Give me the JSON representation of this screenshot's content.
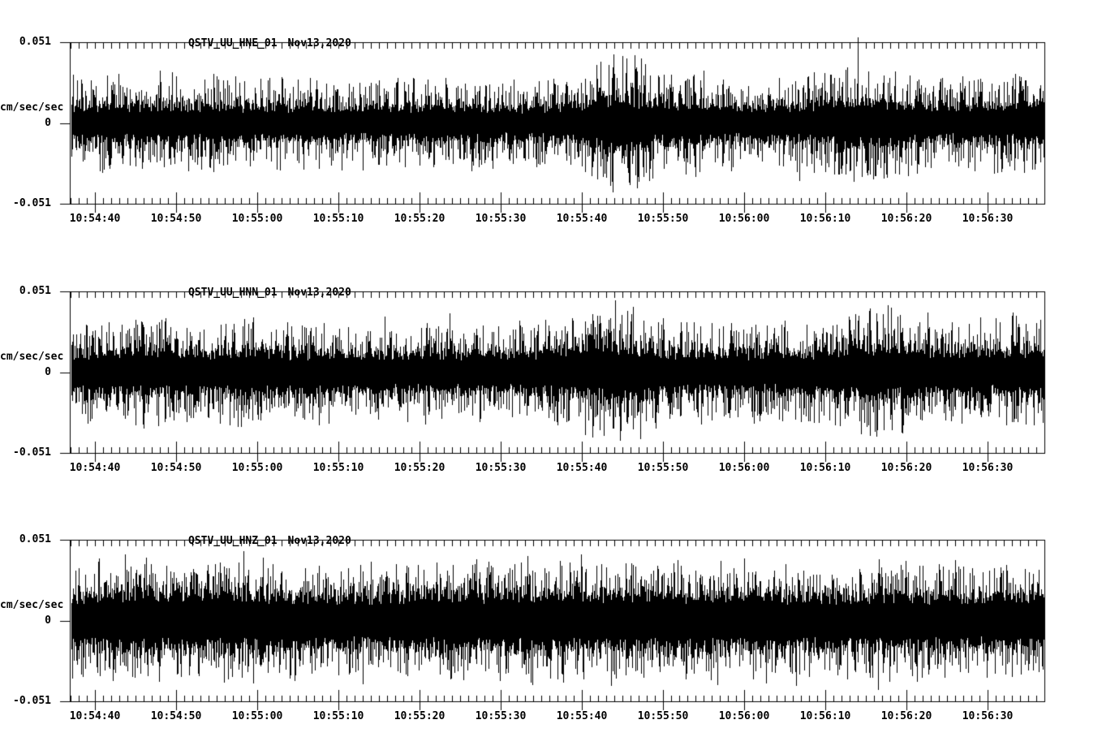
{
  "page": {
    "background": "#ffffff",
    "foreground": "#000000"
  },
  "chart_data": [
    {
      "type": "line",
      "subtype": "seismogram-waveform",
      "title": "QSTV_UU_HNE_01",
      "date": "Nov13,2020",
      "ylabel": "cm/sec/sec",
      "yticks": [
        "0.051",
        "0",
        "-0.051"
      ],
      "ylim": [
        -0.051,
        0.051
      ],
      "x_start_time": "10:54:37",
      "x_end_time": "10:56:37",
      "x_major_interval_s": 10,
      "x_minor_interval_s": 1,
      "x_ticklabels": [
        "10:54:40",
        "10:54:50",
        "10:55:00",
        "10:55:10",
        "10:55:20",
        "10:55:30",
        "10:55:40",
        "10:55:50",
        "10:56:00",
        "10:56:10",
        "10:56:20",
        "10:56:30"
      ],
      "grid": false,
      "legend": false,
      "waveform": {
        "seed": 20201113,
        "core": 18,
        "amp": 38,
        "env": [
          [
            0,
            1.0
          ],
          [
            0.08,
            1.05
          ],
          [
            0.3,
            0.95
          ],
          [
            0.42,
            1.0
          ],
          [
            0.47,
            0.9
          ],
          [
            0.52,
            1.12
          ],
          [
            0.545,
            1.4
          ],
          [
            0.565,
            1.55
          ],
          [
            0.585,
            1.35
          ],
          [
            0.6,
            1.1
          ],
          [
            0.63,
            1.15
          ],
          [
            0.67,
            1.0
          ],
          [
            0.7,
            0.9
          ],
          [
            0.74,
            1.0
          ],
          [
            0.78,
            1.15
          ],
          [
            0.8,
            1.3
          ],
          [
            0.82,
            1.35
          ],
          [
            0.84,
            1.2
          ],
          [
            0.87,
            1.05
          ],
          [
            0.9,
            1.0
          ],
          [
            0.95,
            1.05
          ],
          [
            1,
            1.12
          ]
        ],
        "spikes": [
          [
            0.091,
            65
          ],
          [
            0.108,
            58
          ],
          [
            0.16,
            52
          ],
          [
            0.3,
            -58
          ],
          [
            0.528,
            -60
          ],
          [
            0.54,
            72
          ],
          [
            0.548,
            -62
          ],
          [
            0.558,
            85
          ],
          [
            0.571,
            80
          ],
          [
            0.583,
            -66
          ],
          [
            0.598,
            -68
          ],
          [
            0.64,
            60
          ],
          [
            0.642,
            -66
          ],
          [
            0.749,
            -71
          ],
          [
            0.796,
            66
          ],
          [
            0.809,
            106
          ],
          [
            0.82,
            -58
          ],
          [
            0.87,
            -62
          ],
          [
            0.935,
            55
          ],
          [
            0.975,
            58
          ]
        ]
      }
    },
    {
      "type": "line",
      "subtype": "seismogram-waveform",
      "title": "QSTV_UU_HNN_01",
      "date": "Nov13,2020",
      "ylabel": "cm/sec/sec",
      "yticks": [
        "0.051",
        "0",
        "-0.051"
      ],
      "ylim": [
        -0.051,
        0.051
      ],
      "x_start_time": "10:54:37",
      "x_end_time": "10:56:37",
      "x_major_interval_s": 10,
      "x_minor_interval_s": 1,
      "x_ticklabels": [
        "10:54:40",
        "10:54:50",
        "10:55:00",
        "10:55:10",
        "10:55:20",
        "10:55:30",
        "10:55:40",
        "10:55:50",
        "10:56:00",
        "10:56:10",
        "10:56:20",
        "10:56:30"
      ],
      "grid": false,
      "legend": false,
      "waveform": {
        "seed": 77231,
        "core": 20,
        "amp": 38,
        "env": [
          [
            0,
            1.0
          ],
          [
            0.05,
            1.1
          ],
          [
            0.08,
            1.2
          ],
          [
            0.1,
            1.15
          ],
          [
            0.14,
            1.0
          ],
          [
            0.17,
            1.15
          ],
          [
            0.19,
            1.2
          ],
          [
            0.22,
            1.05
          ],
          [
            0.3,
            1.0
          ],
          [
            0.4,
            1.05
          ],
          [
            0.47,
            1.0
          ],
          [
            0.52,
            1.2
          ],
          [
            0.545,
            1.4
          ],
          [
            0.56,
            1.45
          ],
          [
            0.58,
            1.3
          ],
          [
            0.62,
            1.05
          ],
          [
            0.7,
            1.0
          ],
          [
            0.76,
            1.05
          ],
          [
            0.79,
            1.2
          ],
          [
            0.81,
            1.35
          ],
          [
            0.83,
            1.4
          ],
          [
            0.85,
            1.25
          ],
          [
            0.88,
            1.05
          ],
          [
            0.93,
            1.1
          ],
          [
            1,
            1.15
          ]
        ],
        "spikes": [
          [
            0.073,
            62
          ],
          [
            0.093,
            65
          ],
          [
            0.182,
            60
          ],
          [
            0.255,
            -65
          ],
          [
            0.543,
            70
          ],
          [
            0.553,
            65
          ],
          [
            0.578,
            -70
          ],
          [
            0.585,
            -82
          ],
          [
            0.601,
            -60
          ],
          [
            0.7,
            -55
          ],
          [
            0.76,
            -60
          ],
          [
            0.773,
            55
          ],
          [
            0.81,
            70
          ],
          [
            0.82,
            -65
          ],
          [
            0.835,
            72
          ],
          [
            0.855,
            -75
          ],
          [
            0.905,
            -60
          ],
          [
            0.974,
            60
          ],
          [
            0.99,
            -65
          ]
        ]
      }
    },
    {
      "type": "line",
      "subtype": "seismogram-waveform",
      "title": "QSTV_UU_HNZ_01",
      "date": "Nov13,2020",
      "ylabel": "cm/sec/sec",
      "yticks": [
        "0.051",
        "0",
        "-0.051"
      ],
      "ylim": [
        -0.051,
        0.051
      ],
      "x_start_time": "10:54:37",
      "x_end_time": "10:56:37",
      "x_major_interval_s": 10,
      "x_minor_interval_s": 1,
      "x_ticklabels": [
        "10:54:40",
        "10:54:50",
        "10:55:00",
        "10:55:10",
        "10:55:20",
        "10:55:30",
        "10:55:40",
        "10:55:50",
        "10:56:00",
        "10:56:10",
        "10:56:20",
        "10:56:30"
      ],
      "grid": false,
      "legend": false,
      "waveform": {
        "seed": 424242,
        "core": 27,
        "amp": 40,
        "env": [
          [
            0,
            1.0
          ],
          [
            0.04,
            1.1
          ],
          [
            0.08,
            1.15
          ],
          [
            0.12,
            1.1
          ],
          [
            0.2,
            1.05
          ],
          [
            0.3,
            1.0
          ],
          [
            0.38,
            1.05
          ],
          [
            0.45,
            1.1
          ],
          [
            0.52,
            1.15
          ],
          [
            0.56,
            1.1
          ],
          [
            0.6,
            1.05
          ],
          [
            0.65,
            1.1
          ],
          [
            0.7,
            1.05
          ],
          [
            0.78,
            1.0
          ],
          [
            0.85,
            1.05
          ],
          [
            0.92,
            1.0
          ],
          [
            1,
            1.05
          ]
        ],
        "spikes": [
          [
            0.065,
            -70
          ],
          [
            0.09,
            -75
          ],
          [
            0.105,
            60
          ],
          [
            0.13,
            -65
          ],
          [
            0.175,
            -70
          ],
          [
            0.22,
            -60
          ],
          [
            0.24,
            65
          ],
          [
            0.3,
            -78
          ],
          [
            0.39,
            -72
          ],
          [
            0.42,
            60
          ],
          [
            0.47,
            -65
          ],
          [
            0.52,
            62
          ],
          [
            0.545,
            70
          ],
          [
            0.56,
            -60
          ],
          [
            0.64,
            -65
          ],
          [
            0.7,
            60
          ],
          [
            0.745,
            -80
          ],
          [
            0.79,
            -60
          ],
          [
            0.83,
            -85
          ],
          [
            0.87,
            -75
          ],
          [
            0.91,
            60
          ],
          [
            0.95,
            -65
          ],
          [
            0.985,
            60
          ]
        ]
      }
    }
  ]
}
